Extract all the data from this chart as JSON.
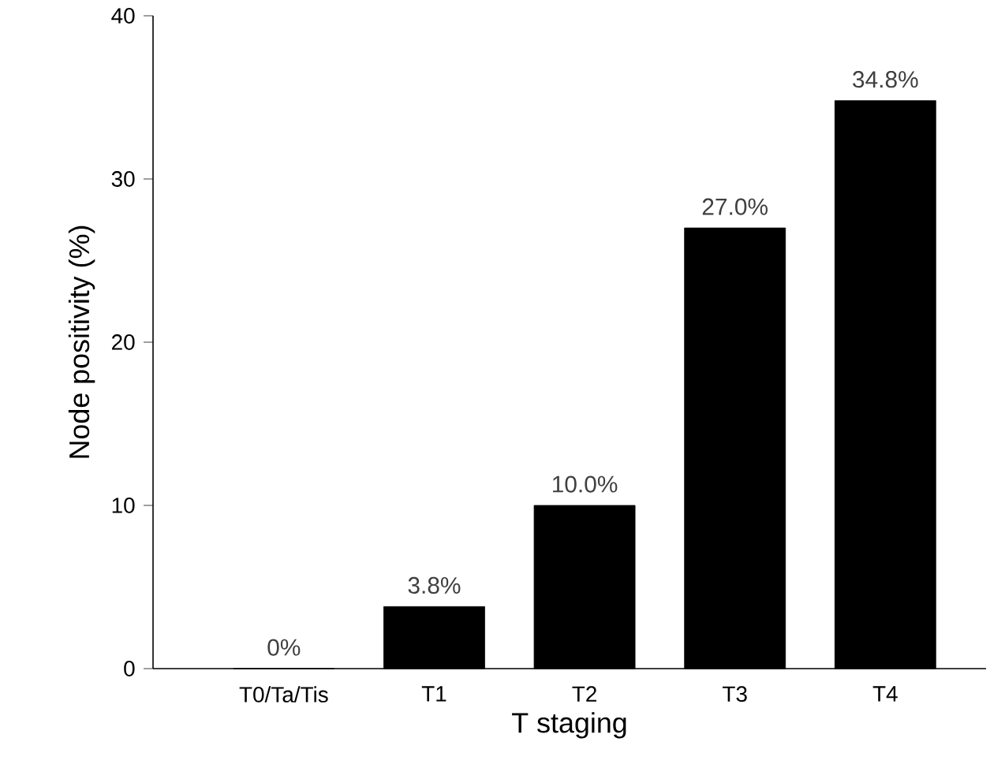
{
  "chart_data": {
    "type": "bar",
    "xlabel": "T staging",
    "ylabel": "Node positivity (%)",
    "categories": [
      "T0/Ta/Tis",
      "T1",
      "T2",
      "T3",
      "T4"
    ],
    "values": [
      0,
      3.8,
      10.0,
      27.0,
      34.8
    ],
    "value_labels": [
      "0%",
      "3.8%",
      "10.0%",
      "27.0%",
      "34.8%"
    ],
    "color": "#000000",
    "ylim": [
      0,
      40
    ],
    "yticks": [
      0,
      10,
      20,
      30,
      40
    ],
    "grid": false
  }
}
